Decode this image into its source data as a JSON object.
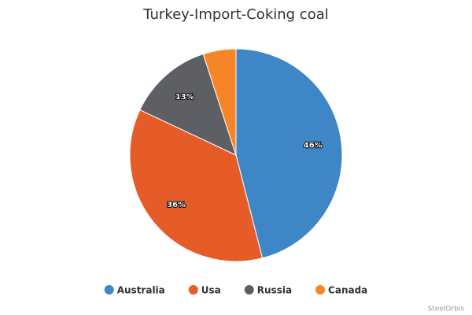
{
  "chart_data": {
    "type": "pie",
    "title": "Turkey-Import-Coking coal",
    "categories": [
      "Australia",
      "Usa",
      "Russia",
      "Canada"
    ],
    "values": [
      46,
      36,
      13,
      5
    ],
    "value_labels": [
      "46%",
      "36%",
      "13%",
      null
    ],
    "colors": [
      "#3f86c6",
      "#e65c29",
      "#5e5f64",
      "#f58527"
    ],
    "legend": "bottom",
    "credit": "SteelOrbis"
  }
}
